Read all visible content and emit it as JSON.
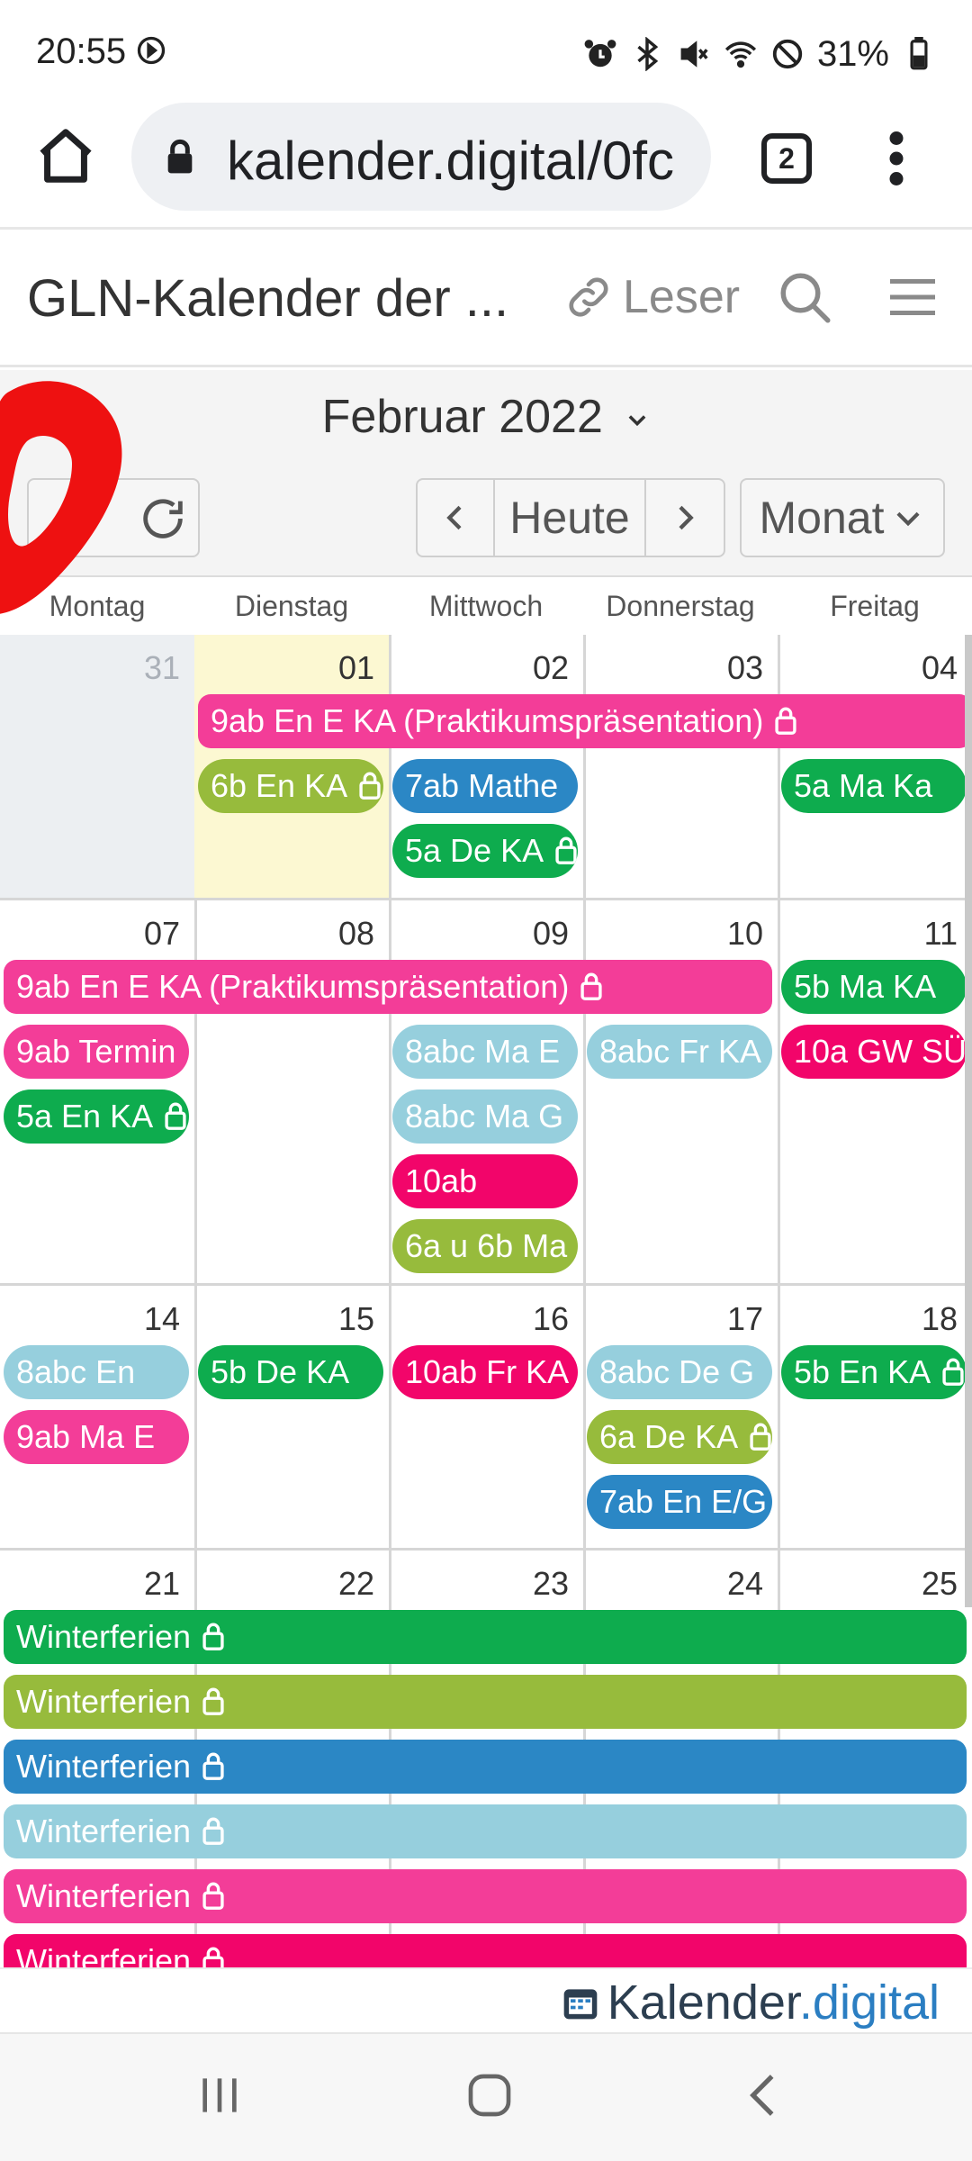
{
  "status_bar": {
    "time": "20:55",
    "battery": "31%"
  },
  "browser": {
    "url": "kalender.digital/0fc",
    "tab_count": "2"
  },
  "app": {
    "title": "GLN-Kalender der ...",
    "role_label": "Leser"
  },
  "calendar": {
    "month_title": "Februar 2022",
    "today_label": "Heute",
    "view_label": "Monat",
    "weekdays": [
      "Montag",
      "Dienstag",
      "Mittwoch",
      "Donnerstag",
      "Freitag"
    ]
  },
  "weeks": [
    {
      "days": [
        "31",
        "01",
        "02",
        "03",
        "04"
      ],
      "events": {
        "multi": "9ab En E KA (Praktikumspräsentation)",
        "tue_1": "6b En KA",
        "wed_1": "7ab Mathe",
        "wed_2": "5a De KA",
        "fri_1": "5a Ma Ka"
      }
    },
    {
      "days": [
        "07",
        "08",
        "09",
        "10",
        "11"
      ],
      "events": {
        "multi": "9ab En E KA (Praktikumspräsentation)",
        "mon_1": "9ab Termin",
        "mon_2": "5a En KA",
        "wed_1": "8abc Ma E",
        "wed_2": "8abc Ma G",
        "wed_3": "10ab",
        "wed_4": "6a u 6b Ma",
        "thu_1": "8abc Fr KA",
        "fri_1": "5b Ma KA",
        "fri_2": "10a GW SÜ"
      }
    },
    {
      "days": [
        "14",
        "15",
        "16",
        "17",
        "18"
      ],
      "events": {
        "mon_1": "8abc En",
        "mon_2": "9ab Ma E",
        "tue_1": "5b De KA",
        "wed_1": "10ab Fr KA",
        "thu_1": "8abc De G",
        "thu_2": "6a De KA",
        "thu_3": "7ab En E/G",
        "fri_1": "5b En KA"
      }
    },
    {
      "days": [
        "21",
        "22",
        "23",
        "24",
        "25"
      ],
      "events": {
        "holiday": "Winterferien"
      }
    }
  ],
  "footer": {
    "brand_main": "Kalender",
    "brand_suffix": ".digital"
  },
  "colors": {
    "green": "#0eac4e",
    "olive": "#97bb3c",
    "blue": "#2b87c5",
    "light_blue": "#96cfdd",
    "pink": "#f33d98",
    "red": "#f2056a",
    "today_bg": "#fcf8d2",
    "annotation": "#ee1111"
  },
  "icons": [
    "history-icon",
    "alarm-icon",
    "bluetooth-icon",
    "mute-icon",
    "wifi-icon",
    "dnd-icon",
    "battery-icon",
    "home-icon",
    "lock-icon",
    "tabs-icon",
    "more-vert-icon",
    "link-icon",
    "search-icon",
    "menu-icon",
    "chevron-down-icon",
    "expand-icon",
    "refresh-icon",
    "chevron-left-icon",
    "chevron-right-icon",
    "calendar-icon",
    "nav-recents-icon",
    "nav-home-icon",
    "nav-back-icon"
  ]
}
